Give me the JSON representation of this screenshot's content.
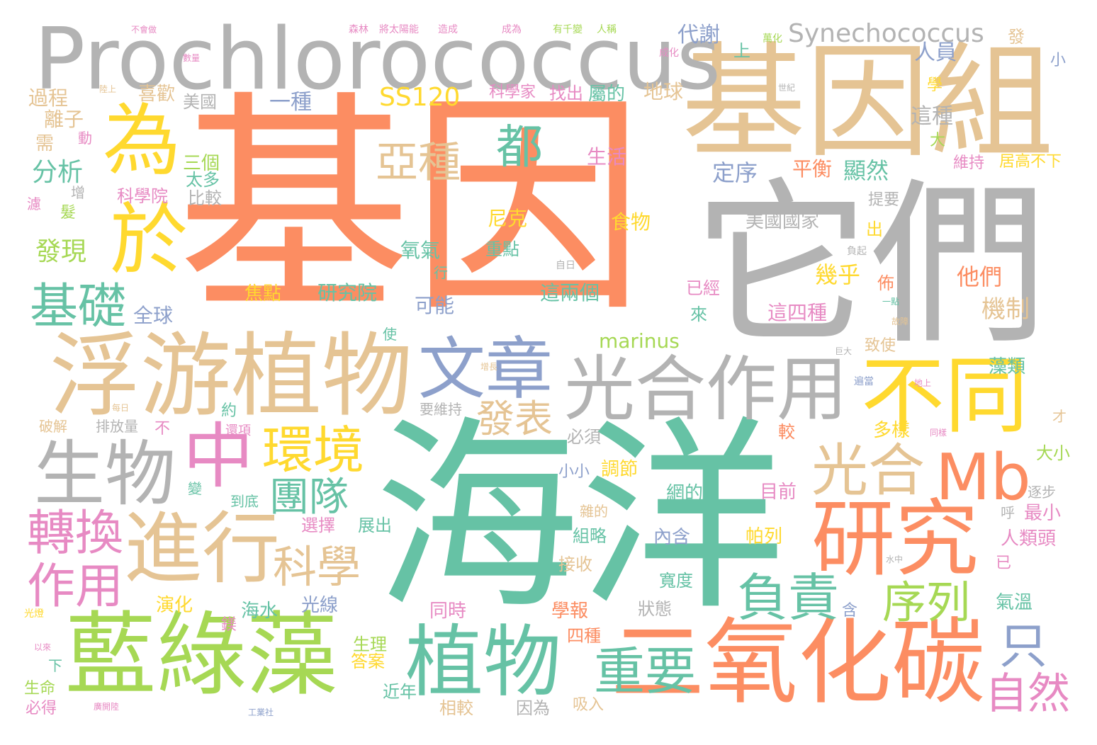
{
  "colors": {
    "orange": "#fc8d62",
    "teal": "#66c2a5",
    "tan": "#e5c494",
    "gray": "#b3b3b3",
    "yellow": "#ffd92f",
    "green": "#a6d854",
    "pink": "#e78ac3",
    "blue": "#8da0cb"
  },
  "words": [
    {
      "text": "基因",
      "color": "orange"
    },
    {
      "text": "海洋",
      "color": "teal"
    },
    {
      "text": "它們",
      "color": "gray"
    },
    {
      "text": "基因組",
      "color": "tan"
    },
    {
      "text": "Prochlorococcus",
      "color": "gray"
    },
    {
      "text": "浮游植物",
      "color": "tan"
    },
    {
      "text": "藍綠藻",
      "color": "green"
    },
    {
      "text": "二氧化碳",
      "color": "orange"
    },
    {
      "text": "光合作用",
      "color": "gray"
    },
    {
      "text": "不同",
      "color": "yellow"
    },
    {
      "text": "研究",
      "color": "orange"
    },
    {
      "text": "植物",
      "color": "teal"
    },
    {
      "text": "進行",
      "color": "tan"
    },
    {
      "text": "文章",
      "color": "blue"
    },
    {
      "text": "生物",
      "color": "gray"
    },
    {
      "text": "中",
      "color": "pink"
    },
    {
      "text": "為",
      "color": "yellow"
    },
    {
      "text": "於",
      "color": "yellow"
    },
    {
      "text": "光合",
      "color": "tan"
    },
    {
      "text": "Mb",
      "color": "orange"
    },
    {
      "text": "環境",
      "color": "yellow"
    },
    {
      "text": "負責",
      "color": "teal"
    },
    {
      "text": "重要",
      "color": "teal"
    },
    {
      "text": "序列",
      "color": "green"
    },
    {
      "text": "科學",
      "color": "tan"
    },
    {
      "text": "轉換",
      "color": "pink"
    },
    {
      "text": "作用",
      "color": "pink"
    },
    {
      "text": "基礎",
      "color": "teal"
    },
    {
      "text": "只",
      "color": "blue"
    },
    {
      "text": "自然",
      "color": "pink"
    },
    {
      "text": "亞種",
      "color": "tan"
    },
    {
      "text": "都",
      "color": "teal"
    },
    {
      "text": "團隊",
      "color": "teal"
    },
    {
      "text": "發表",
      "color": "tan"
    },
    {
      "text": "Synechococcus",
      "color": "gray"
    },
    {
      "text": "SS120",
      "color": "yellow"
    },
    {
      "text": "發現",
      "color": "green"
    },
    {
      "text": "分析",
      "color": "teal"
    },
    {
      "text": "代謝",
      "color": "blue"
    },
    {
      "text": "一種",
      "color": "blue"
    },
    {
      "text": "地球",
      "color": "tan"
    },
    {
      "text": "marinus",
      "color": "green"
    },
    {
      "text": "機制",
      "color": "tan"
    },
    {
      "text": "人員",
      "color": "blue"
    },
    {
      "text": "這種",
      "color": "gray"
    },
    {
      "text": "美國國家",
      "color": "gray"
    },
    {
      "text": "這四種",
      "color": "pink"
    },
    {
      "text": "這兩個",
      "color": "teal"
    },
    {
      "text": "研究院",
      "color": "teal"
    },
    {
      "text": "全球",
      "color": "blue"
    },
    {
      "text": "可能",
      "color": "blue"
    },
    {
      "text": "氧氣",
      "color": "teal"
    },
    {
      "text": "焦點",
      "color": "yellow"
    },
    {
      "text": "幾乎",
      "color": "yellow"
    },
    {
      "text": "他們",
      "color": "orange"
    },
    {
      "text": "平衡",
      "color": "orange"
    },
    {
      "text": "顯然",
      "color": "teal"
    },
    {
      "text": "定序",
      "color": "blue"
    },
    {
      "text": "生活",
      "color": "pink"
    },
    {
      "text": "食物",
      "color": "yellow"
    },
    {
      "text": "尼克",
      "color": "yellow"
    },
    {
      "text": "重點",
      "color": "teal"
    },
    {
      "text": "比較",
      "color": "gray"
    },
    {
      "text": "科學院",
      "color": "pink"
    },
    {
      "text": "太多",
      "color": "teal"
    },
    {
      "text": "三個",
      "color": "green"
    },
    {
      "text": "美國",
      "color": "gray"
    },
    {
      "text": "喜歡",
      "color": "tan"
    },
    {
      "text": "過程",
      "color": "tan"
    },
    {
      "text": "離子",
      "color": "tan"
    },
    {
      "text": "科學家",
      "color": "pink"
    },
    {
      "text": "找出",
      "color": "pink"
    },
    {
      "text": "屬的",
      "color": "teal"
    },
    {
      "text": "居高不下",
      "color": "yellow"
    },
    {
      "text": "維持",
      "color": "pink"
    },
    {
      "text": "提要",
      "color": "gray"
    },
    {
      "text": "藻類",
      "color": "teal"
    },
    {
      "text": "致使",
      "color": "tan"
    },
    {
      "text": "已經",
      "color": "pink"
    },
    {
      "text": "多樣",
      "color": "yellow"
    },
    {
      "text": "大小",
      "color": "green"
    },
    {
      "text": "最小",
      "color": "pink"
    },
    {
      "text": "人類頭",
      "color": "pink"
    },
    {
      "text": "氣溫",
      "color": "teal"
    },
    {
      "text": "帕列",
      "color": "yellow"
    },
    {
      "text": "內含",
      "color": "blue"
    },
    {
      "text": "寬度",
      "color": "teal"
    },
    {
      "text": "目前",
      "color": "pink"
    },
    {
      "text": "網的",
      "color": "teal"
    },
    {
      "text": "調節",
      "color": "yellow"
    },
    {
      "text": "小小",
      "color": "blue"
    },
    {
      "text": "必須",
      "color": "gray"
    },
    {
      "text": "展出",
      "color": "teal"
    },
    {
      "text": "選擇",
      "color": "pink"
    },
    {
      "text": "組略",
      "color": "teal"
    },
    {
      "text": "接收",
      "color": "tan"
    },
    {
      "text": "演化",
      "color": "yellow"
    },
    {
      "text": "海水",
      "color": "teal"
    },
    {
      "text": "光線",
      "color": "blue"
    },
    {
      "text": "同時",
      "color": "pink"
    },
    {
      "text": "學報",
      "color": "orange"
    },
    {
      "text": "狀態",
      "color": "gray"
    },
    {
      "text": "四種",
      "color": "orange"
    },
    {
      "text": "生理",
      "color": "green"
    },
    {
      "text": "答案",
      "color": "yellow"
    },
    {
      "text": "近年",
      "color": "teal"
    },
    {
      "text": "相較",
      "color": "tan"
    },
    {
      "text": "因為",
      "color": "gray"
    },
    {
      "text": "吸入",
      "color": "tan"
    },
    {
      "text": "生命",
      "color": "green"
    },
    {
      "text": "必得",
      "color": "pink"
    },
    {
      "text": "要維持",
      "color": "gray"
    },
    {
      "text": "排放量",
      "color": "gray"
    },
    {
      "text": "破解",
      "color": "tan"
    },
    {
      "text": "約",
      "color": "teal"
    },
    {
      "text": "不",
      "color": "pink"
    },
    {
      "text": "還項",
      "color": "pink"
    },
    {
      "text": "較",
      "color": "orange"
    },
    {
      "text": "出",
      "color": "yellow"
    },
    {
      "text": "佈",
      "color": "orange"
    },
    {
      "text": "來",
      "color": "teal"
    },
    {
      "text": "上",
      "color": "teal"
    },
    {
      "text": "發",
      "color": "tan"
    },
    {
      "text": "小",
      "color": "blue"
    },
    {
      "text": "學",
      "color": "yellow"
    },
    {
      "text": "大",
      "color": "green"
    },
    {
      "text": "需",
      "color": "tan"
    },
    {
      "text": "動",
      "color": "pink"
    },
    {
      "text": "髮",
      "color": "green"
    },
    {
      "text": "鎂",
      "color": "pink"
    },
    {
      "text": "含",
      "color": "blue"
    },
    {
      "text": "已",
      "color": "pink"
    },
    {
      "text": "到底",
      "color": "teal"
    },
    {
      "text": "雜的",
      "color": "tan"
    },
    {
      "text": "逐步",
      "color": "gray"
    },
    {
      "text": "呼",
      "color": "gray"
    },
    {
      "text": "下",
      "color": "teal"
    },
    {
      "text": "變",
      "color": "teal"
    },
    {
      "text": "增",
      "color": "gray"
    },
    {
      "text": "濾",
      "color": "pink"
    },
    {
      "text": "行",
      "color": "teal"
    },
    {
      "text": "才",
      "color": "tan"
    },
    {
      "text": "使",
      "color": "teal"
    },
    {
      "text": "不會做",
      "color": "pink"
    },
    {
      "text": "森林",
      "color": "pink"
    },
    {
      "text": "將太陽能",
      "color": "pink"
    },
    {
      "text": "造成",
      "color": "pink"
    },
    {
      "text": "成為",
      "color": "pink"
    },
    {
      "text": "有千變",
      "color": "green"
    },
    {
      "text": "人稱",
      "color": "green"
    },
    {
      "text": "萬化",
      "color": "green"
    },
    {
      "text": "成化",
      "color": "pink"
    },
    {
      "text": "世紀",
      "color": "gray"
    },
    {
      "text": "陸上",
      "color": "tan"
    },
    {
      "text": "數量",
      "color": "pink"
    },
    {
      "text": "自日",
      "color": "gray"
    },
    {
      "text": "負起",
      "color": "gray"
    },
    {
      "text": "一點",
      "color": "teal"
    },
    {
      "text": "故障",
      "color": "tan"
    },
    {
      "text": "增長",
      "color": "tan"
    },
    {
      "text": "遍當",
      "color": "blue"
    },
    {
      "text": "地上",
      "color": "pink"
    },
    {
      "text": "每日",
      "color": "tan"
    },
    {
      "text": "光燈",
      "color": "yellow"
    },
    {
      "text": "以來",
      "color": "pink"
    },
    {
      "text": "工業社",
      "color": "blue"
    },
    {
      "text": "廣開陸",
      "color": "pink"
    },
    {
      "text": "水中",
      "color": "gray"
    },
    {
      "text": "巨大",
      "color": "gray"
    },
    {
      "text": "同樣",
      "color": "pink"
    }
  ]
}
